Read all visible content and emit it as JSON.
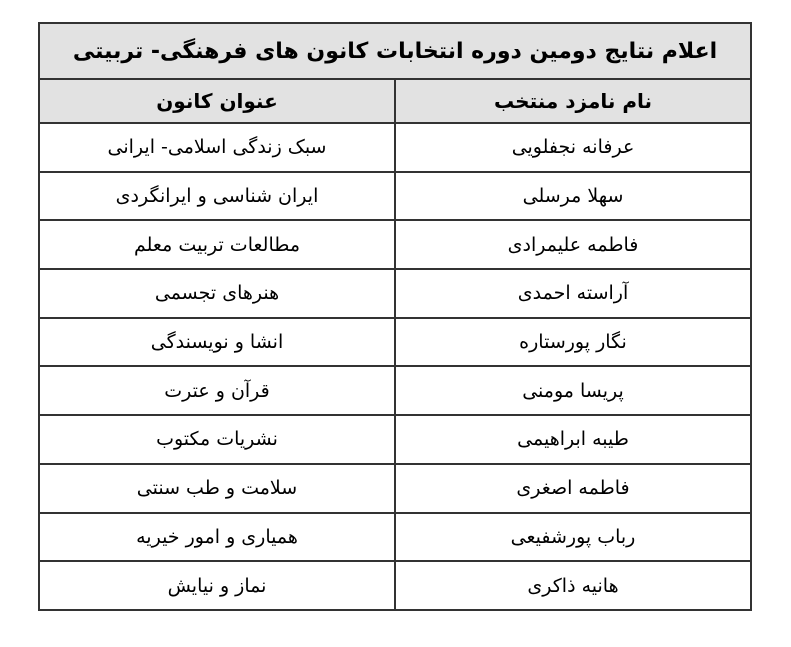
{
  "title": "اعلام نتایج دومین دوره انتخابات کانون های فرهنگی- تربیتی",
  "headers": {
    "candidate": "نام نامزد منتخب",
    "center": "عنوان کانون"
  },
  "rows": [
    {
      "candidate": "عرفانه نجفلویی",
      "center": "سبک زندگی اسلامی- ایرانی"
    },
    {
      "candidate": "سهلا مرسلی",
      "center": "ایران شناسی و ایرانگردی"
    },
    {
      "candidate": "فاطمه علیمرادی",
      "center": "مطالعات تربیت معلم"
    },
    {
      "candidate": "آراسته احمدی",
      "center": "هنرهای تجسمی"
    },
    {
      "candidate": "نگار پورستاره",
      "center": "انشا و نویسندگی"
    },
    {
      "candidate": "پریسا مومنی",
      "center": "قرآن و عترت"
    },
    {
      "candidate": "طیبه ابراهیمی",
      "center": "نشریات مکتوب"
    },
    {
      "candidate": "فاطمه اصغری",
      "center": "سلامت و طب سنتی"
    },
    {
      "candidate": "رباب پورشفیعی",
      "center": "همیاری و امور خیریه"
    },
    {
      "candidate": "هانیه ذاکری",
      "center": "نماز و نیایش"
    }
  ],
  "colors": {
    "page_bg": "#ffffff",
    "header_bg": "#e2e2e2",
    "row_bg": "#ffffff",
    "border": "#333333",
    "text": "#000000"
  }
}
